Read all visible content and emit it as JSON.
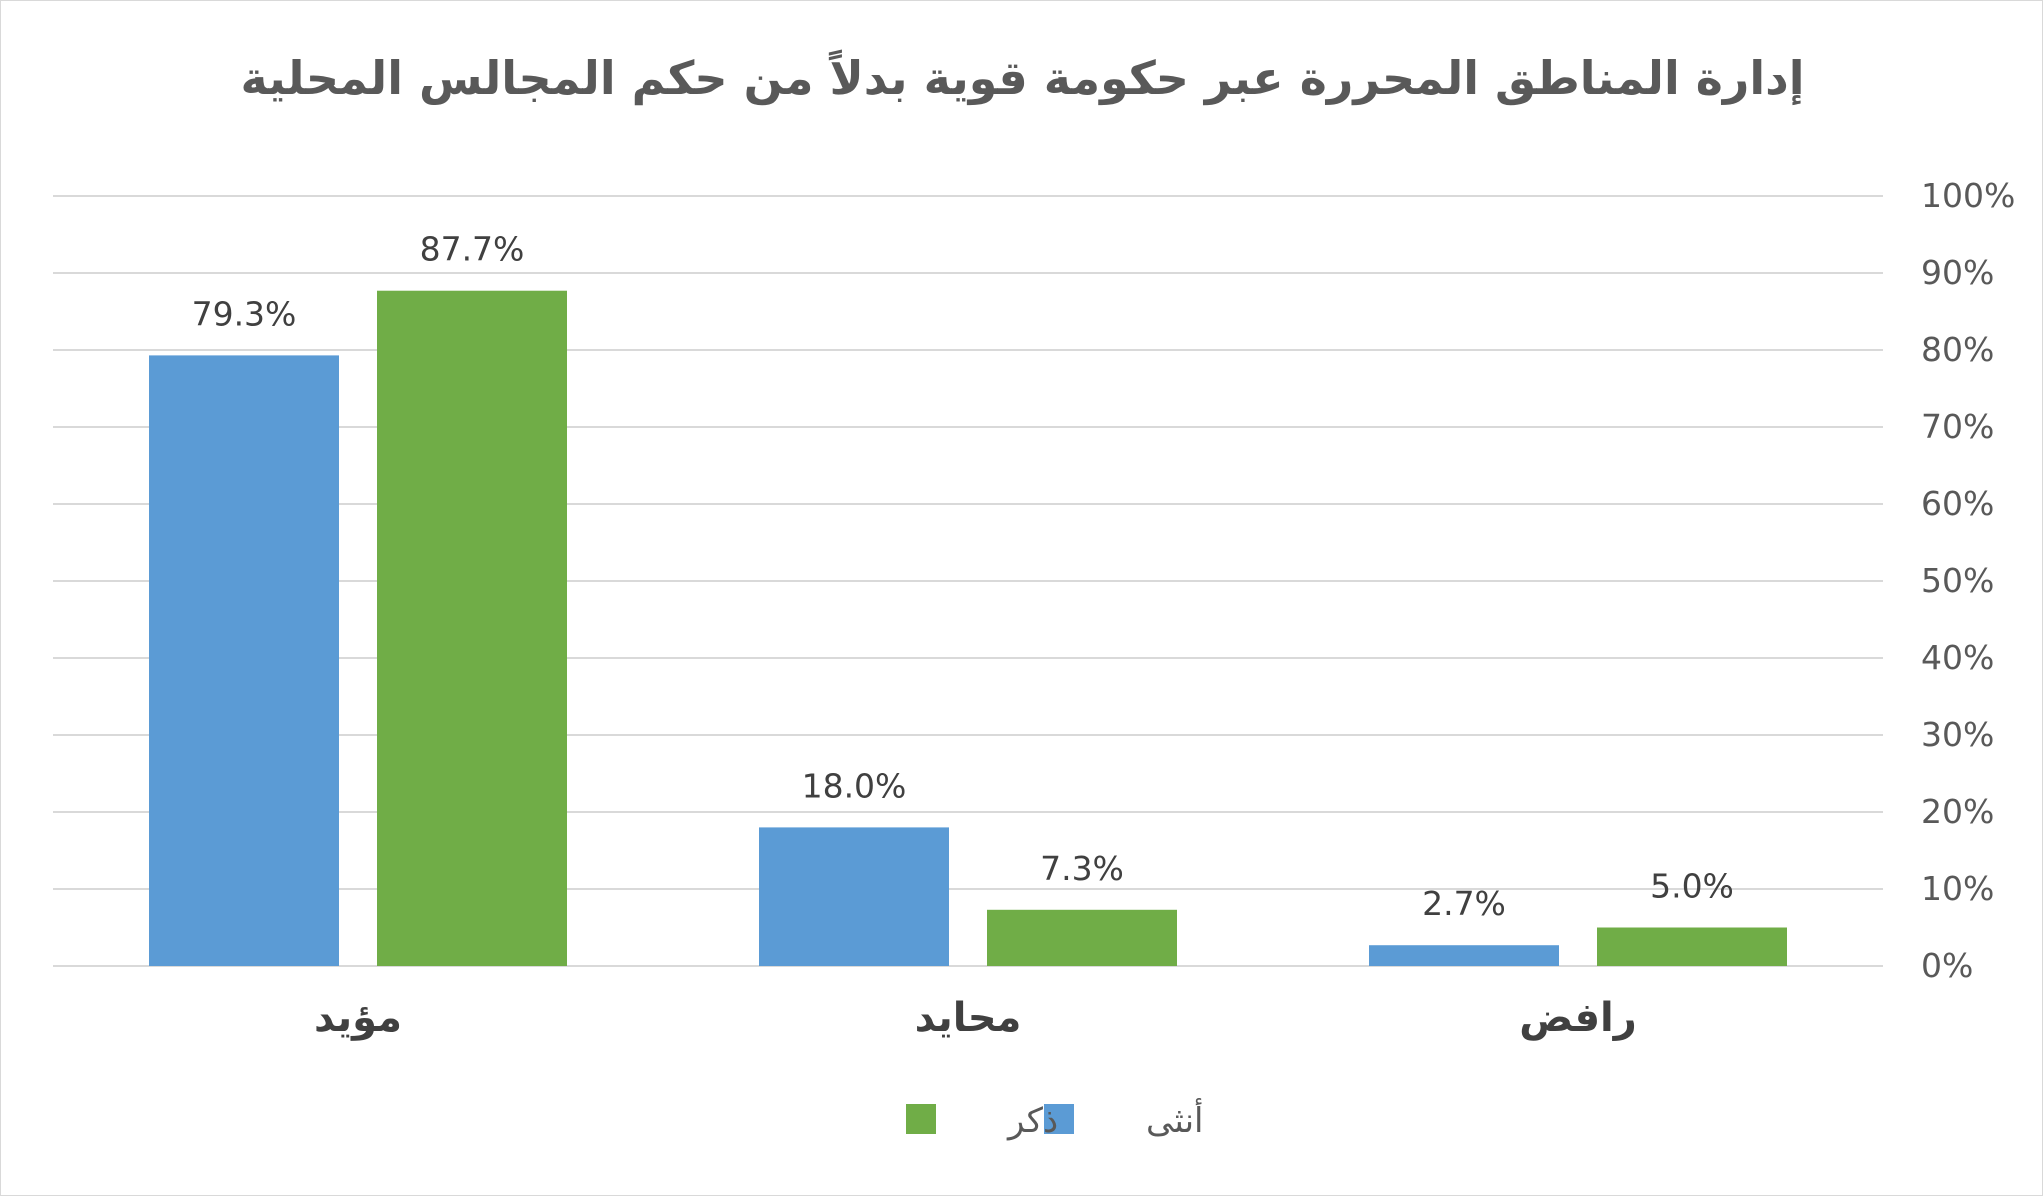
{
  "chart_data": {
    "type": "bar",
    "title": "إدارة المناطق المحررة عبر حكومة قوية بدلاً من حكم المجالس المحلية",
    "categories": [
      "مؤيد",
      "محايد",
      "رافض"
    ],
    "series": [
      {
        "name": "أنثى",
        "color": "#5b9bd5",
        "values": [
          79.3,
          18.0,
          2.7
        ]
      },
      {
        "name": "ذكر",
        "color": "#70ad47",
        "values": [
          87.7,
          7.3,
          5.0
        ]
      }
    ],
    "data_labels": [
      [
        "79.3%",
        "18.0%",
        "2.7%"
      ],
      [
        "87.7%",
        "7.3%",
        "5.0%"
      ]
    ],
    "ylim": [
      0,
      100
    ],
    "ytick_step": 10,
    "ytick_suffix": "%",
    "y_axis_side": "right",
    "grid": true,
    "legend": "bottom",
    "xlabel": "",
    "ylabel": "",
    "colors": {
      "gridline": "#d9d9d9",
      "tick_text": "#595959",
      "data_label_text": "#404040",
      "category_text": "#404040"
    }
  }
}
